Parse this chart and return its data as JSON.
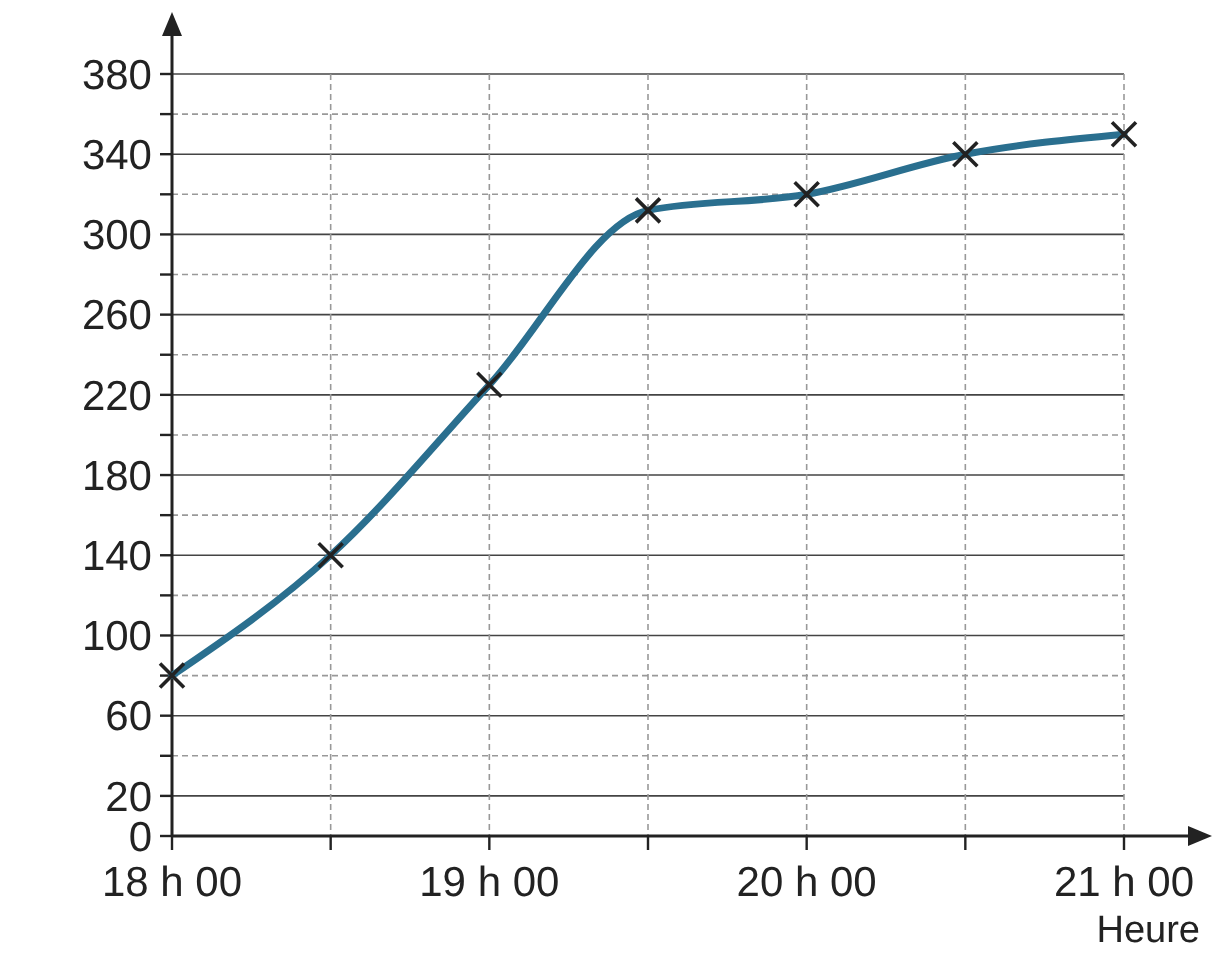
{
  "chart_data": {
    "type": "line",
    "xlabel": "Heure",
    "categories": [
      "18 h 00",
      null,
      "19 h 00",
      null,
      "20 h 00",
      null,
      "21 h 00"
    ],
    "series": [
      {
        "color": "#2a6f8f",
        "values": [
          80,
          140,
          225,
          312,
          320,
          340,
          350
        ]
      }
    ],
    "ylim": [
      0,
      380
    ],
    "yticks": [
      0,
      20,
      {
        "value": 40,
        "label": null
      },
      60,
      {
        "value": 80,
        "label": null
      },
      100,
      {
        "value": 120,
        "label": null
      },
      140,
      {
        "value": 160,
        "label": null
      },
      180,
      {
        "value": 200,
        "label": null
      },
      220,
      {
        "value": 240,
        "label": null
      },
      260,
      {
        "value": 280,
        "label": null
      },
      300,
      {
        "value": 320,
        "label": null
      },
      340,
      {
        "value": 360,
        "label": null
      },
      380
    ],
    "grid": true,
    "marker": "cross",
    "line_style": "solid"
  }
}
